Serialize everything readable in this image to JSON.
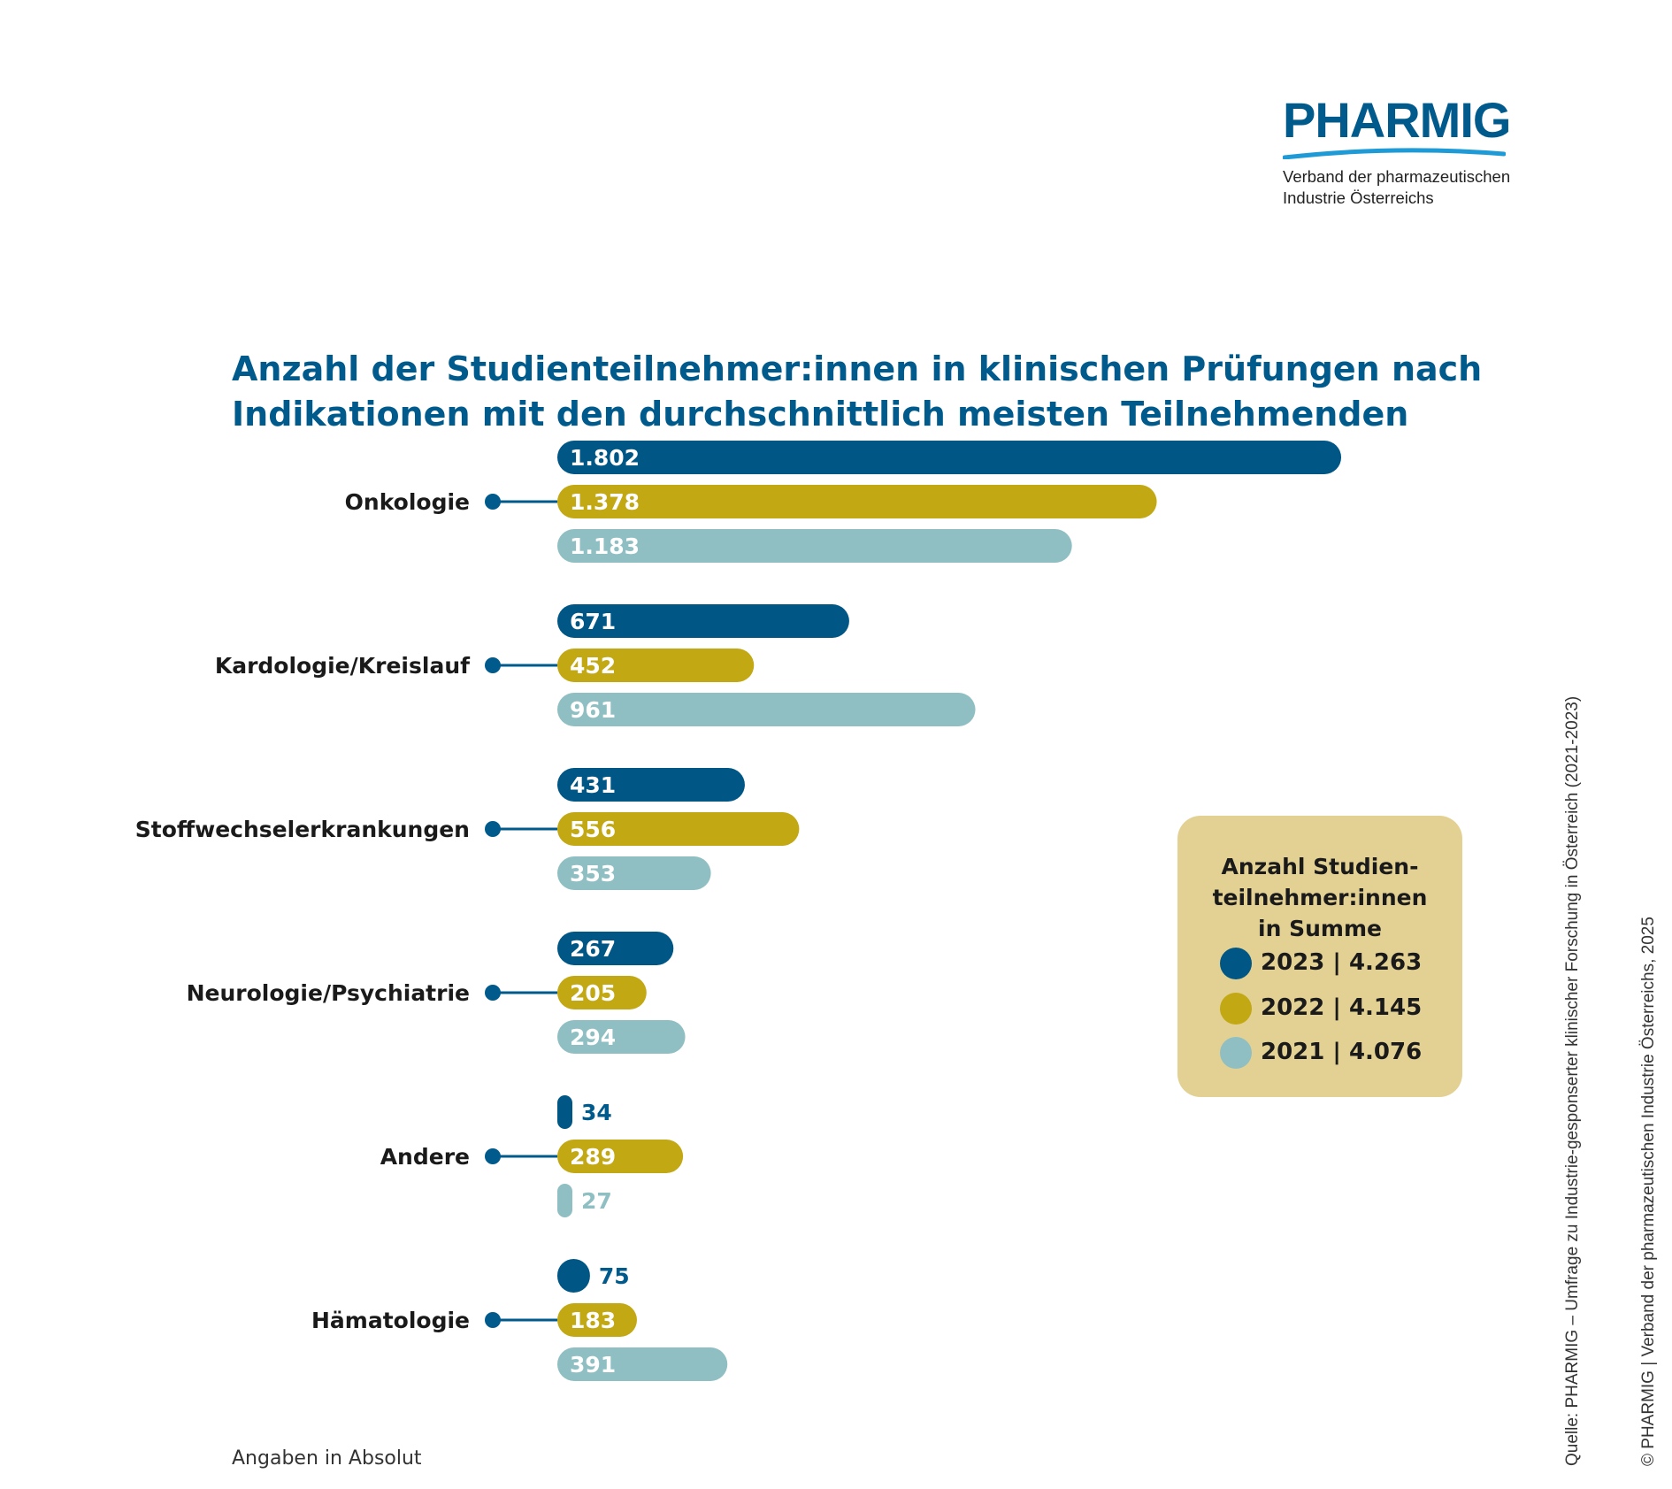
{
  "logo": {
    "name": "PHARMIG",
    "subtitle_line1": "Verband der pharmazeutischen",
    "subtitle_line2": "Industrie Österreichs"
  },
  "title_line1": "Anzahl der Studienteilnehmer:innen in klinischen Prüfungen nach",
  "title_line2": "Indikationen mit den durchschnittlich meisten Teilnehmenden",
  "colors": {
    "2023": "#005685",
    "2022": "#C2A813",
    "2021": "#8FBFC2",
    "legend_bg": "#E3D193",
    "accent": "#005A8C"
  },
  "chart_data": {
    "type": "bar",
    "orientation": "horizontal",
    "categories": [
      "Onkologie",
      "Kardologie/Kreislauf",
      "Stoffwechselerkrankungen",
      "Neurologie/Psychiatrie",
      "Andere",
      "Hämatologie"
    ],
    "series": [
      {
        "name": "2023",
        "values": [
          1802,
          671,
          431,
          267,
          34,
          75
        ]
      },
      {
        "name": "2022",
        "values": [
          1378,
          452,
          556,
          205,
          289,
          183
        ]
      },
      {
        "name": "2021",
        "values": [
          1183,
          961,
          353,
          294,
          27,
          391
        ]
      }
    ],
    "value_labels": [
      [
        "1.802",
        "671",
        "431",
        "267",
        "34",
        "75"
      ],
      [
        "1.378",
        "452",
        "556",
        "205",
        "289",
        "183"
      ],
      [
        "1.183",
        "961",
        "353",
        "294",
        "27",
        "391"
      ]
    ],
    "unit_note": "Angaben in Absolut"
  },
  "legend": {
    "title_line1": "Anzahl Studien-",
    "title_line2": "teilnehmer:innen",
    "title_line3": "in Summe",
    "items": [
      {
        "label": "2023 | 4.263",
        "color": "#005685"
      },
      {
        "label": "2022 | 4.145",
        "color": "#C2A813"
      },
      {
        "label": "2021 | 4.076",
        "color": "#8FBFC2"
      }
    ]
  },
  "footnote": "Angaben in Absolut",
  "source": "Quelle: PHARMIG – Umfrage zu Industrie-gesponserter klinischer Forschung in Österreich (2021-2023)",
  "copyright": "© PHARMIG | Verband der pharmazeutischen Industrie Österreichs, 2025"
}
